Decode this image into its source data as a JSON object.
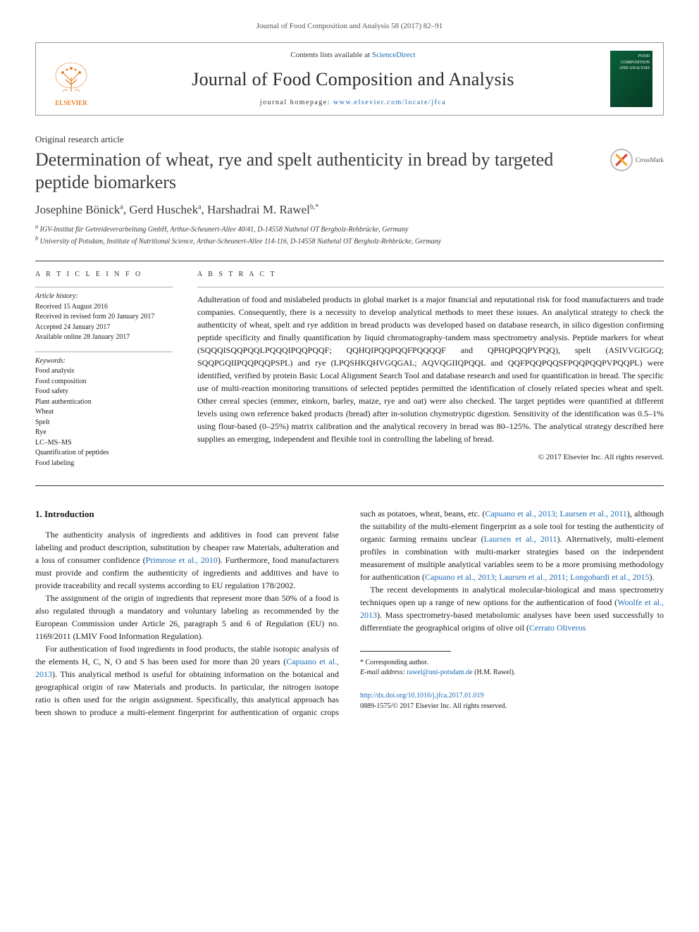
{
  "journal_ref": "Journal of Food Composition and Analysis 58 (2017) 82–91",
  "header": {
    "contents_pre": "Contents lists available at ",
    "contents_link": "ScienceDirect",
    "journal_name": "Journal of Food Composition and Analysis",
    "homepage_pre": "journal homepage: ",
    "homepage_link": "www.elsevier.com/locate/jfca",
    "elsevier_label": "ELSEVIER",
    "cover_text": "FOOD COMPOSITION AND ANALYSIS"
  },
  "article_type": "Original research article",
  "title": "Determination of wheat, rye and spelt authenticity in bread by targeted peptide biomarkers",
  "crossmark": "CrossMark",
  "authors_html": "Josephine Bönick<sup>a</sup>, Gerd Huschek<sup>a</sup>, Harshadrai M. Rawel<sup>b,*</sup>",
  "affiliations": {
    "a": "IGV-Institut für Getreideverarbeitung GmbH, Arthur-Scheunert-Allee 40/41, D-14558 Nuthetal OT Bergholz-Rehbrücke, Germany",
    "b": "University of Potsdam, Institute of Nutritional Science, Arthur-Scheunert-Allee 114-116, D-14558 Nuthetal OT Bergholz-Rehbrücke, Germany"
  },
  "meta": {
    "label": "A R T I C L E   I N F O",
    "history_label": "Article history:",
    "received": "Received 15 August 2016",
    "revised": "Received in revised form 20 January 2017",
    "accepted": "Accepted 24 January 2017",
    "online": "Available online 28 January 2017",
    "keywords_label": "Keywords:",
    "keywords": [
      "Food analysis",
      "Food composition",
      "Food safety",
      "Plant authentication",
      "Wheat",
      "Spelt",
      "Rye",
      "LC–MS–MS",
      "Quantification of peptides",
      "Food labeling"
    ]
  },
  "abstract": {
    "label": "A B S T R A C T",
    "text": "Adulteration of food and mislabeled products in global market is a major financial and reputational risk for food manufacturers and trade companies. Consequently, there is a necessity to develop analytical methods to meet these issues. An analytical strategy to check the authenticity of wheat, spelt and rye addition in bread products was developed based on database research, in silico digestion confirming peptide specificity and finally quantification by liquid chromatography-tandem mass spectrometry analysis. Peptide markers for wheat (SQQQISQQPQQLPQQQIPQQPQQF; QQHQIPQQPQQFPQQQQF and QPHQPQQPYPQQ), spelt (ASIVVGIGGQ; SQQPGQIIPQQPQQPSPL) and rye (LPQSHKQHVGQGAL; AQVQGIIQPQQL and QQFPQQPQQSFPQQPQQPVPQQPL) were identified, verified by protein Basic Local Alignment Search Tool and database research and used for quantification in bread. The specific use of multi-reaction monitoring transitions of selected peptides permitted the identification of closely related species wheat and spelt. Other cereal species (emmer, einkorn, barley, maize, rye and oat) were also checked. The target peptides were quantified at different levels using own reference baked products (bread) after in-solution chymotryptic digestion. Sensitivity of the identification was 0.5–1% using flour-based (0–25%) matrix calibration and the analytical recovery in bread was 80–125%. The analytical strategy described here supplies an emerging, independent and flexible tool in controlling the labeling of bread.",
    "copyright": "© 2017 Elsevier Inc. All rights reserved."
  },
  "body": {
    "heading": "1. Introduction",
    "p1_pre": "The authenticity analysis of ingredients and additives in food can prevent false labeling and product description, substitution by cheaper raw Materials, adulteration and a loss of consumer confidence (",
    "p1_link": "Primrose et al., 2010",
    "p1_post": "). Furthermore, food manufacturers must provide and confirm the authenticity of ingredients and additives and have to provide traceability and recall systems according to EU regulation 178/2002.",
    "p2": "The assignment of the origin of ingredients that represent more than 50% of a food is also regulated through a mandatory and voluntary labeling as recommended by the European Commission under Article 26, paragraph 5 and 6 of Regulation (EU) no. 1169/2011 (LMIV Food Information Regulation).",
    "p3_pre": "For authentication of food ingredients in food products, the stable isotopic analysis of the elements H, C, N, O and S has been used for more than 20 years (",
    "p3_link1": "Capuano et al., 2013",
    "p3_mid1": "). This analytical method is useful for obtaining information on the botanical and geographical origin of raw Materials and products. In particular, the nitrogen isotope ratio is often used for the origin assignment. Specifically, this analytical approach has been shown to produce a multi-element fingerprint for authentication of organic crops such as potatoes, wheat, beans, etc. (",
    "p3_link2": "Capuano et al., 2013; Laursen et al., 2011",
    "p3_mid2": "), although the suitability of the multi-element fingerprint as a sole tool for testing the authenticity of organic farming remains unclear (",
    "p3_link3": "Laursen et al., 2011",
    "p3_mid3": "). Alternatively, multi-element profiles in combination with multi-marker strategies based on the independent measurement of multiple analytical variables seem to be a more promising methodology for authentication (",
    "p3_link4": "Capuano et al., 2013; Laursen et al., 2011; Longobardi et al., 2015",
    "p3_post": ").",
    "p4_pre": "The recent developments in analytical molecular-biological and mass spectrometry techniques open up a range of new options for the authentication of food (",
    "p4_link1": "Woolfe et al., 2013",
    "p4_mid": "). Mass spectrometry-based metabolomic analyses have been used successfully to differentiate the geographical origins of olive oil (",
    "p4_link2": "Cerrato Oliveros"
  },
  "footnote": {
    "corr": "* Corresponding author.",
    "email_label": "E-mail address: ",
    "email": "rawel@uni-potsdam.de",
    "email_name": " (H.M. Rawel)."
  },
  "doi": {
    "url": "http://dx.doi.org/10.1016/j.jfca.2017.01.019",
    "issn": "0889-1575/© 2017 Elsevier Inc. All rights reserved."
  },
  "colors": {
    "link": "#1a6bb5",
    "text": "#1a1a1a",
    "elsevier": "#e67e22",
    "cover_bg": "#0a5f3a"
  },
  "fontsize": {
    "title": 26,
    "journal": 26,
    "authors": 17,
    "body": 12,
    "abstract": 12,
    "meta": 10,
    "footnote": 10
  }
}
